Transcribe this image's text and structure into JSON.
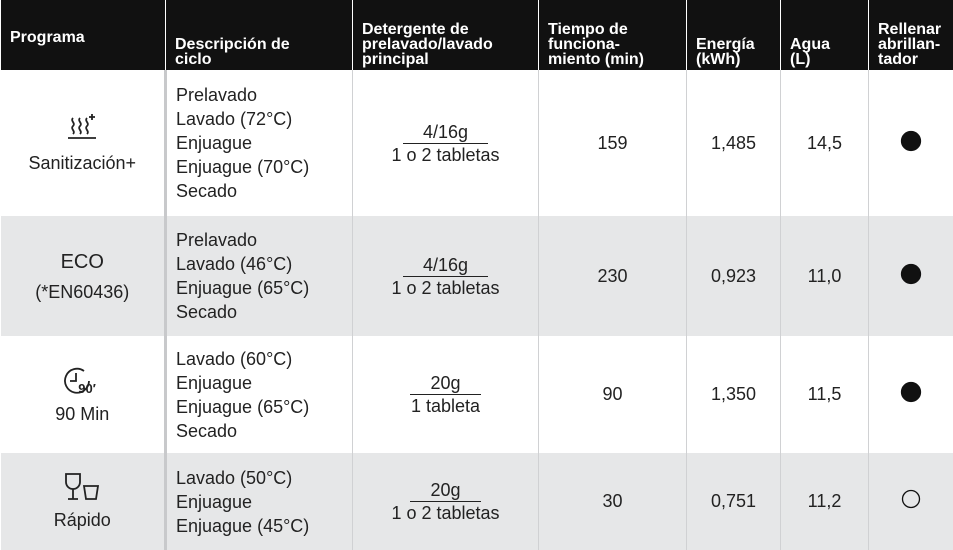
{
  "header": [
    [
      "Programa"
    ],
    [
      "Descripción de",
      "ciclo"
    ],
    [
      "Detergente de",
      "prelavado/lavado",
      "principal"
    ],
    [
      "Tiempo de",
      "funciona-",
      "miento (min)"
    ],
    [
      "Energía",
      "(kWh)"
    ],
    [
      "Agua",
      "(L)"
    ],
    [
      "Rellenar",
      "abrillan-",
      "tador"
    ]
  ],
  "rows": [
    {
      "program": {
        "name": "Sanitización+"
      },
      "description": [
        "Prelavado",
        "Lavado (72°C)",
        "Enjuague",
        "Enjuague (70°C)",
        "Secado"
      ],
      "detergent": {
        "top": "4/16g",
        "bottom": "1 o 2 tabletas"
      },
      "time": "159",
      "energy": "1,485",
      "water": "14,5",
      "rinse_aid": true
    },
    {
      "program": {
        "name": "ECO",
        "note": "(*EN60436)"
      },
      "description": [
        "Prelavado",
        "Lavado (46°C)",
        "Enjuague (65°C)",
        "Secado"
      ],
      "detergent": {
        "top": "4/16g",
        "bottom": "1 o 2 tabletas"
      },
      "time": "230",
      "energy": "0,923",
      "water": "11,0",
      "rinse_aid": true
    },
    {
      "program": {
        "name": "90 Min",
        "icon_text": "90′"
      },
      "description": [
        "Lavado (60°C)",
        "Enjuague",
        "Enjuague (65°C)",
        "Secado"
      ],
      "detergent": {
        "top": "20g",
        "bottom": "1  tableta"
      },
      "time": "90",
      "energy": "1,350",
      "water": "11,5",
      "rinse_aid": true
    },
    {
      "program": {
        "name": "Rápido"
      },
      "description": [
        "Lavado (50°C)",
        "Enjuague",
        "Enjuague (45°C)"
      ],
      "detergent": {
        "top": "20g",
        "bottom": "1 o 2 tabletas"
      },
      "time": "30",
      "energy": "0,751",
      "water": "11,2",
      "rinse_aid": false
    }
  ]
}
